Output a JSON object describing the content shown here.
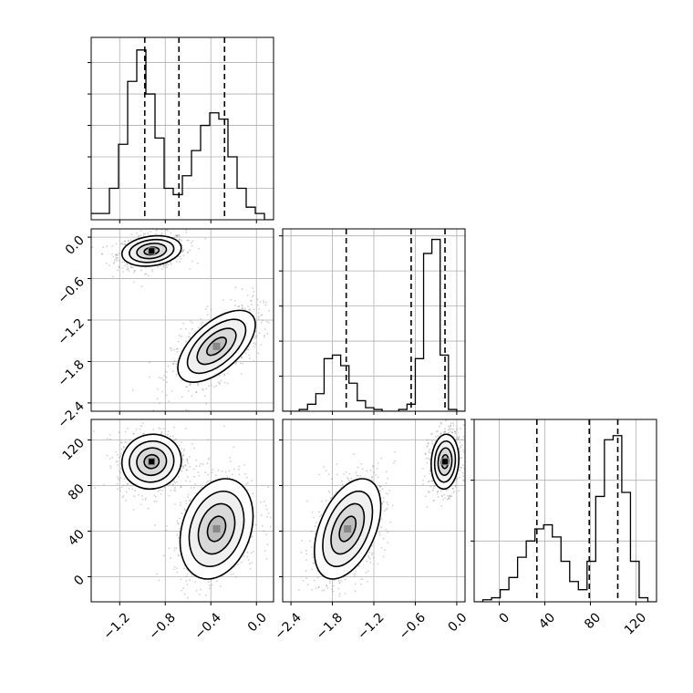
{
  "chart_data": {
    "type": "corner",
    "parameters": [
      {
        "ticks": [
          -1.2,
          -0.8,
          -0.4,
          0.0
        ],
        "tick_labels": [
          "−1.2",
          "−0.8",
          "−0.4",
          "0.0"
        ],
        "range": [
          -1.45,
          0.15
        ],
        "quantiles": [
          -0.98,
          -0.68,
          -0.28
        ]
      },
      {
        "ticks": [
          -2.4,
          -1.8,
          -1.2,
          -0.6,
          0.0
        ],
        "tick_labels": [
          "−2.4",
          "−1.8",
          "−1.2",
          "−0.6",
          "0.0"
        ],
        "range": [
          -2.52,
          0.12
        ],
        "quantiles": [
          -1.6,
          -0.66,
          -0.17
        ]
      },
      {
        "ticks": [
          0,
          40,
          80,
          120
        ],
        "tick_labels": [
          "0",
          "40",
          "80",
          "120"
        ],
        "range": [
          -22,
          138
        ],
        "quantiles": [
          33,
          79,
          104
        ]
      }
    ],
    "histograms": [
      {
        "param": 0,
        "bins": [
          -1.45,
          0.15
        ],
        "counts": [
          1,
          1,
          5,
          12,
          22,
          27,
          20,
          13,
          5,
          4,
          7,
          11,
          15,
          17,
          16,
          10,
          5,
          2,
          1,
          0
        ],
        "ymax": 29
      },
      {
        "param": 1,
        "bins": [
          -2.52,
          0.12
        ],
        "counts": [
          0,
          0,
          0.5,
          2,
          5,
          15,
          16,
          13,
          8,
          3,
          1,
          0.5,
          0,
          0,
          0.5,
          2,
          15,
          45,
          49,
          16,
          0.5,
          0
        ],
        "ymax": 52
      },
      {
        "param": 2,
        "bins": [
          -22,
          138
        ],
        "counts": [
          0,
          0.5,
          1,
          3,
          6,
          11,
          15,
          18,
          19,
          16,
          10,
          5,
          3,
          10,
          26,
          40,
          41,
          27,
          10,
          1,
          0
        ],
        "ymax": 45
      }
    ],
    "scatter_panels": [
      {
        "x_param": 0,
        "y_param": 1,
        "clusters": [
          {
            "x": -0.92,
            "y": -0.2,
            "sx": 0.13,
            "sy": 0.11,
            "rho": 0.2,
            "n": 750
          },
          {
            "x": -0.35,
            "y": -1.58,
            "sx": 0.17,
            "sy": 0.26,
            "rho": 0.6,
            "n": 750
          }
        ]
      },
      {
        "x_param": 0,
        "y_param": 2,
        "clusters": [
          {
            "x": -0.92,
            "y": 101,
            "sx": 0.13,
            "sy": 12,
            "rho": 0.05,
            "n": 750
          },
          {
            "x": -0.35,
            "y": 42,
            "sx": 0.16,
            "sy": 22,
            "rho": 0.25,
            "n": 750
          }
        ]
      },
      {
        "x_param": 1,
        "y_param": 2,
        "clusters": [
          {
            "x": -0.17,
            "y": 101,
            "sx": 0.1,
            "sy": 12,
            "rho": 0.1,
            "n": 750
          },
          {
            "x": -1.58,
            "y": 42,
            "sx": 0.24,
            "sy": 22,
            "rho": 0.45,
            "n": 750
          }
        ]
      }
    ],
    "contour_levels_sigma": [
      0.5,
      1.0,
      1.5,
      2.0
    ],
    "grid": true,
    "legend": "none",
    "title": "",
    "colors": {
      "line": "#000000",
      "grid": "#b0b0b0",
      "points": "#7a7a7a"
    }
  }
}
